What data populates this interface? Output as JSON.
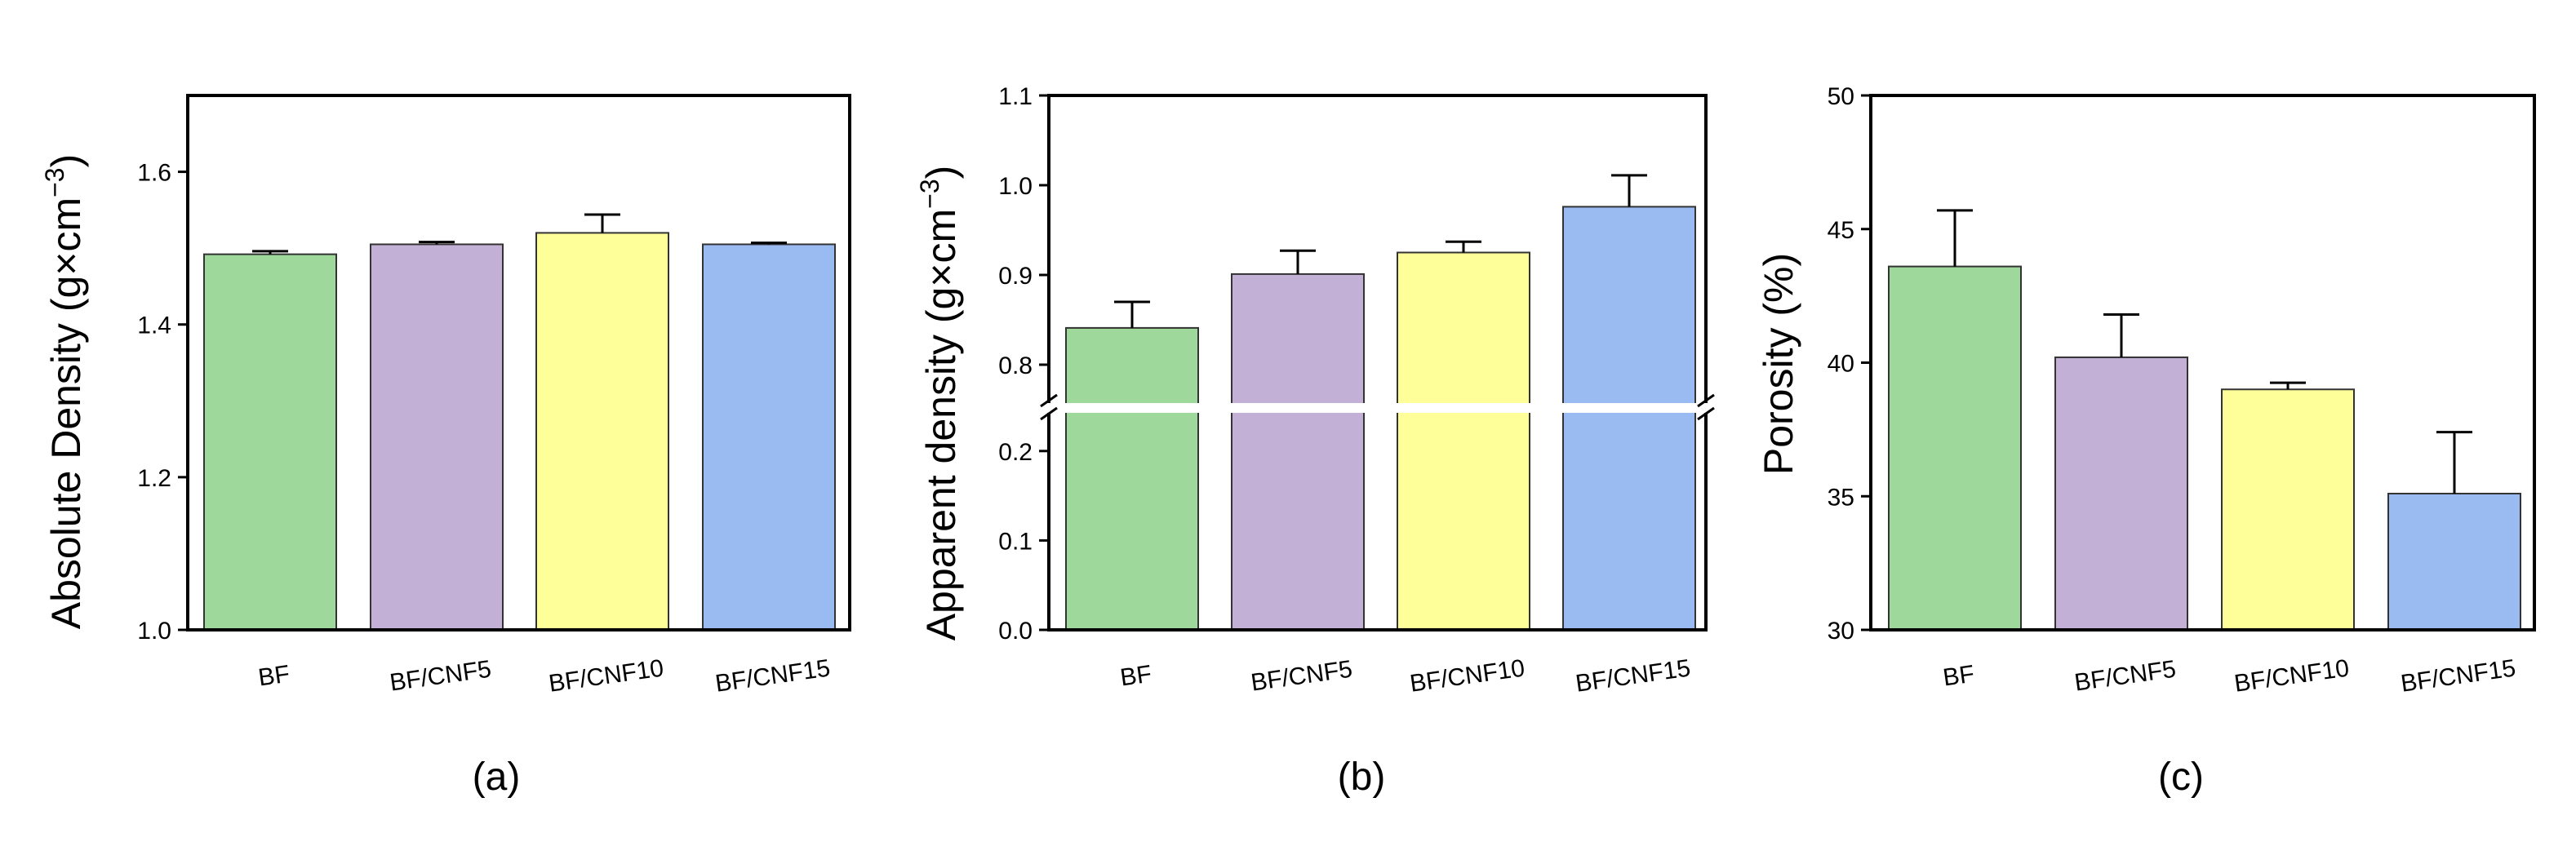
{
  "chart_data": [
    {
      "type": "bar",
      "panel_label": "(a)",
      "ylabel": "Absolute Density (g×cm",
      "ylabel_sup": "−3",
      "ylabel_close": ")",
      "categories": [
        "BF",
        "BF/CNF5",
        "BF/CNF10",
        "BF/CNF15"
      ],
      "values": [
        1.492,
        1.505,
        1.52,
        1.505
      ],
      "errors": [
        0.004,
        0.003,
        0.024,
        0.002
      ],
      "ylim": [
        1.0,
        1.7
      ],
      "yticks": [
        1.0,
        1.2,
        1.4,
        1.6
      ],
      "ytick_labels": [
        "1.0",
        "1.2",
        "1.4",
        "1.6"
      ]
    },
    {
      "type": "bar",
      "panel_label": "(b)",
      "ylabel": "Apparent density (g×cm",
      "ylabel_sup": "−3",
      "ylabel_close": ")",
      "categories": [
        "BF",
        "BF/CNF5",
        "BF/CNF10",
        "BF/CNF15"
      ],
      "values": [
        0.841,
        0.901,
        0.925,
        0.976
      ],
      "errors": [
        0.029,
        0.026,
        0.012,
        0.035
      ],
      "ylim": [
        0.0,
        1.1
      ],
      "axis_break": [
        0.25,
        0.75
      ],
      "yticks": [
        0.0,
        0.1,
        0.2,
        0.8,
        0.9,
        1.0,
        1.1
      ],
      "ytick_labels": [
        "0.0",
        "0.1",
        "0.2",
        "0.8",
        "0.9",
        "1.0",
        "1.1"
      ]
    },
    {
      "type": "bar",
      "panel_label": "(c)",
      "ylabel": "Porosity (%)",
      "categories": [
        "BF",
        "BF/CNF5",
        "BF/CNF10",
        "BF/CNF15"
      ],
      "values": [
        43.6,
        40.2,
        39.0,
        35.1
      ],
      "errors": [
        2.1,
        1.6,
        0.25,
        2.3
      ],
      "ylim": [
        30,
        50
      ],
      "yticks": [
        30,
        35,
        40,
        45,
        50
      ],
      "ytick_labels": [
        "30",
        "35",
        "40",
        "45",
        "50"
      ]
    }
  ],
  "colors": [
    "#9fd89b",
    "#c3b0d6",
    "#ffff99",
    "#99bbf2"
  ]
}
